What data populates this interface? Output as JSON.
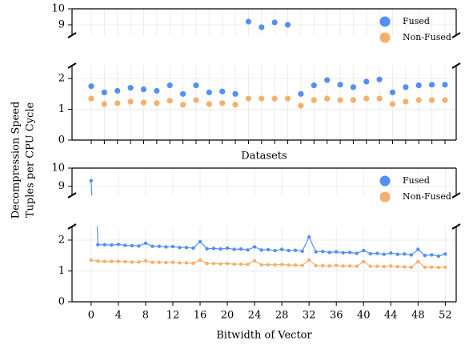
{
  "ylabel": [
    "Decompression Speed",
    "Tuples per CPU Cycle"
  ],
  "chart_data": [
    {
      "type": "scatter",
      "xlabel": "Datasets",
      "categories": [
        null,
        null,
        null,
        null,
        null,
        null,
        null,
        null,
        null,
        null,
        null,
        null,
        null,
        null,
        null,
        null,
        null,
        null,
        null,
        null,
        null,
        null,
        null,
        null,
        null,
        null,
        null,
        null
      ],
      "panels": [
        {
          "ylim": [
            8.35,
            10
          ],
          "yticks": [
            9,
            10
          ]
        },
        {
          "ylim": [
            0,
            2.42
          ],
          "yticks": [
            0,
            1,
            2
          ]
        }
      ],
      "grid": true,
      "legend": "upper right",
      "series": [
        {
          "name": "Fused",
          "color": "#5290f5",
          "values": [
            1.75,
            1.55,
            1.6,
            1.7,
            1.65,
            1.6,
            1.78,
            1.5,
            1.78,
            1.55,
            1.58,
            1.5,
            9.2,
            8.85,
            9.15,
            9.0,
            1.5,
            1.78,
            1.95,
            1.8,
            1.72,
            1.9,
            1.97,
            1.55,
            1.72,
            1.78,
            1.8,
            1.8
          ]
        },
        {
          "name": "Non-Fused",
          "color": "#f5b06b",
          "values": [
            1.35,
            1.17,
            1.2,
            1.25,
            1.22,
            1.2,
            1.28,
            1.15,
            1.3,
            1.17,
            1.2,
            1.15,
            1.35,
            1.35,
            1.35,
            1.35,
            1.12,
            1.3,
            1.35,
            1.3,
            1.3,
            1.35,
            1.35,
            1.17,
            1.25,
            1.3,
            1.3,
            1.3
          ]
        }
      ]
    },
    {
      "type": "line",
      "xlabel": "Bitwidth of Vector",
      "x": [
        0,
        1,
        2,
        3,
        4,
        5,
        6,
        7,
        8,
        9,
        10,
        11,
        12,
        13,
        14,
        15,
        16,
        17,
        18,
        19,
        20,
        21,
        22,
        23,
        24,
        25,
        26,
        27,
        28,
        29,
        30,
        31,
        32,
        33,
        34,
        35,
        36,
        37,
        38,
        39,
        40,
        41,
        42,
        43,
        44,
        45,
        46,
        47,
        48,
        49,
        50,
        51,
        52
      ],
      "xlim": [
        -2.8,
        53.6
      ],
      "xticks": [
        0,
        4,
        8,
        12,
        16,
        20,
        24,
        28,
        32,
        36,
        40,
        44,
        48,
        52
      ],
      "panels": [
        {
          "ylim": [
            8.5,
            10
          ],
          "yticks": [
            9,
            10
          ]
        },
        {
          "ylim": [
            0,
            2.44
          ],
          "yticks": [
            0,
            1,
            2
          ]
        }
      ],
      "grid": true,
      "legend": "upper right",
      "series": [
        {
          "name": "Fused",
          "color": "#5290f5",
          "values": [
            9.3,
            1.85,
            1.85,
            1.84,
            1.86,
            1.83,
            1.82,
            1.81,
            1.9,
            1.8,
            1.8,
            1.78,
            1.79,
            1.76,
            1.76,
            1.74,
            1.95,
            1.72,
            1.73,
            1.71,
            1.74,
            1.7,
            1.71,
            1.68,
            1.78,
            1.68,
            1.69,
            1.66,
            1.7,
            1.66,
            1.67,
            1.64,
            2.1,
            1.62,
            1.63,
            1.6,
            1.62,
            1.59,
            1.6,
            1.57,
            1.66,
            1.56,
            1.57,
            1.54,
            1.58,
            1.54,
            1.55,
            1.52,
            1.7,
            1.5,
            1.52,
            1.48,
            1.55
          ]
        },
        {
          "name": "Non-Fused",
          "color": "#f5b06b",
          "values": [
            1.35,
            1.32,
            1.31,
            1.31,
            1.31,
            1.3,
            1.29,
            1.29,
            1.33,
            1.28,
            1.28,
            1.27,
            1.28,
            1.26,
            1.26,
            1.25,
            1.35,
            1.24,
            1.24,
            1.23,
            1.24,
            1.22,
            1.22,
            1.21,
            1.33,
            1.2,
            1.2,
            1.2,
            1.21,
            1.19,
            1.19,
            1.18,
            1.35,
            1.17,
            1.17,
            1.16,
            1.18,
            1.16,
            1.16,
            1.15,
            1.3,
            1.15,
            1.15,
            1.14,
            1.16,
            1.14,
            1.13,
            1.12,
            1.3,
            1.12,
            1.12,
            1.11,
            1.12
          ]
        }
      ]
    }
  ]
}
